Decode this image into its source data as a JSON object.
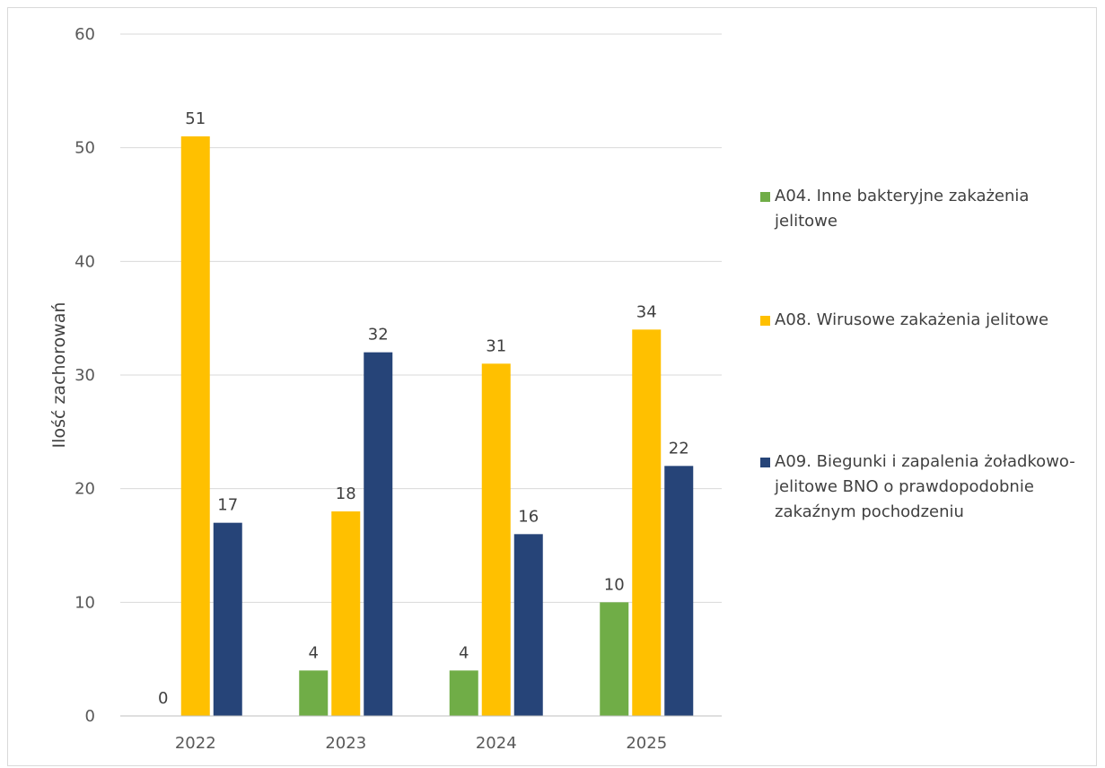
{
  "chart_data": {
    "type": "bar",
    "categories": [
      "2022",
      "2023",
      "2024",
      "2025"
    ],
    "series": [
      {
        "name": "A04. Inne bakteryjne zakażenia jelitowe",
        "values": [
          0,
          4,
          4,
          10
        ],
        "color": "#70ad47"
      },
      {
        "name": "A08. Wirusowe zakażenia jelitowe",
        "values": [
          51,
          18,
          31,
          34
        ],
        "color": "#ffc000"
      },
      {
        "name": "A09. Biegunki i zapalenia żoładkowo-jelitowe BNO o prawdopodobnie zakaźnym pochodzeniu",
        "values": [
          17,
          32,
          16,
          22
        ],
        "color": "#264478"
      }
    ],
    "ylabel": "Ilość zachorowań",
    "ylim": [
      0,
      60
    ],
    "yticks": [
      0,
      10,
      20,
      30,
      40,
      50,
      60
    ],
    "grid": true,
    "legend": "right",
    "data_labels": true
  }
}
